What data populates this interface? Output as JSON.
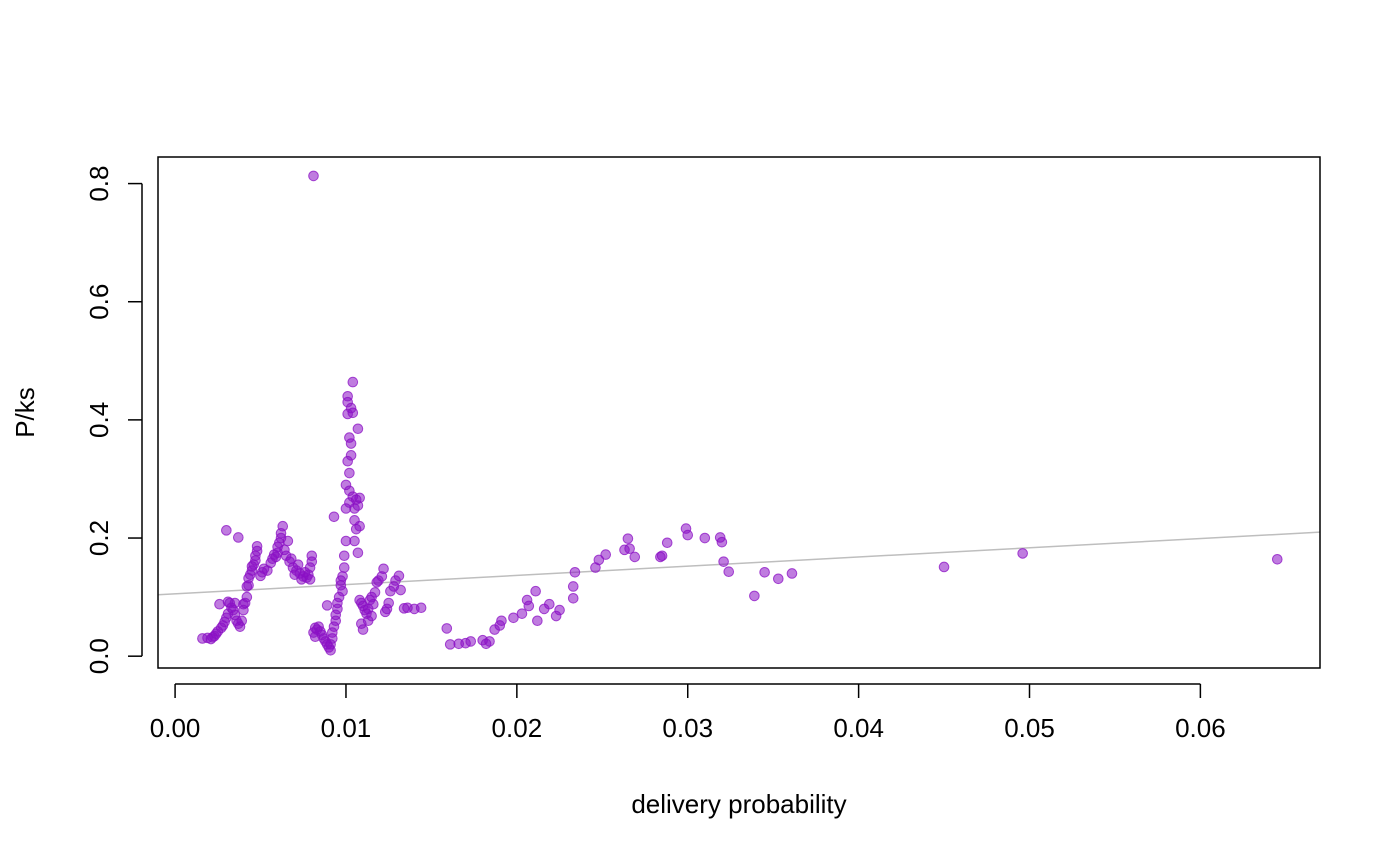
{
  "chart_data": {
    "type": "scatter",
    "title": "",
    "xlabel": "delivery probability",
    "ylabel": "P/ks",
    "xlim": [
      -0.001,
      0.067
    ],
    "ylim": [
      -0.02,
      0.845
    ],
    "x_ticks": [
      {
        "value": 0.0,
        "label": "0.00"
      },
      {
        "value": 0.01,
        "label": "0.01"
      },
      {
        "value": 0.02,
        "label": "0.02"
      },
      {
        "value": 0.03,
        "label": "0.03"
      },
      {
        "value": 0.04,
        "label": "0.04"
      },
      {
        "value": 0.05,
        "label": "0.05"
      },
      {
        "value": 0.06,
        "label": "0.06"
      }
    ],
    "y_ticks": [
      {
        "value": 0.0,
        "label": "0.0"
      },
      {
        "value": 0.2,
        "label": "0.2"
      },
      {
        "value": 0.4,
        "label": "0.4"
      },
      {
        "value": 0.6,
        "label": "0.6"
      },
      {
        "value": 0.8,
        "label": "0.8"
      }
    ],
    "grid": false,
    "legend": "none",
    "point_color": "#8B10C4",
    "trend_line": {
      "color": "#BEBEBE",
      "x": [
        -0.001,
        0.067
      ],
      "y": [
        0.104,
        0.21
      ]
    },
    "series": [
      {
        "points": [
          [
            0.0016,
            0.03
          ],
          [
            0.0019,
            0.031
          ],
          [
            0.0021,
            0.029
          ],
          [
            0.0022,
            0.032
          ],
          [
            0.0023,
            0.034
          ],
          [
            0.0024,
            0.038
          ],
          [
            0.0025,
            0.042
          ],
          [
            0.0026,
            0.088
          ],
          [
            0.0027,
            0.048
          ],
          [
            0.0028,
            0.052
          ],
          [
            0.0029,
            0.058
          ],
          [
            0.003,
            0.065
          ],
          [
            0.003,
            0.213
          ],
          [
            0.0031,
            0.072
          ],
          [
            0.0031,
            0.092
          ],
          [
            0.0032,
            0.09
          ],
          [
            0.0033,
            0.082
          ],
          [
            0.0034,
            0.078
          ],
          [
            0.0035,
            0.07
          ],
          [
            0.0035,
            0.09
          ],
          [
            0.0036,
            0.06
          ],
          [
            0.0037,
            0.055
          ],
          [
            0.0037,
            0.201
          ],
          [
            0.0038,
            0.05
          ],
          [
            0.0039,
            0.06
          ],
          [
            0.004,
            0.078
          ],
          [
            0.004,
            0.088
          ],
          [
            0.0041,
            0.09
          ],
          [
            0.0042,
            0.1
          ],
          [
            0.0042,
            0.118
          ],
          [
            0.0043,
            0.12
          ],
          [
            0.0043,
            0.132
          ],
          [
            0.0044,
            0.138
          ],
          [
            0.0045,
            0.145
          ],
          [
            0.0045,
            0.152
          ],
          [
            0.0046,
            0.155
          ],
          [
            0.0047,
            0.162
          ],
          [
            0.0047,
            0.17
          ],
          [
            0.0048,
            0.178
          ],
          [
            0.0048,
            0.186
          ],
          [
            0.005,
            0.136
          ],
          [
            0.0051,
            0.142
          ],
          [
            0.0052,
            0.148
          ],
          [
            0.0054,
            0.145
          ],
          [
            0.0056,
            0.158
          ],
          [
            0.0057,
            0.165
          ],
          [
            0.0058,
            0.172
          ],
          [
            0.0059,
            0.168
          ],
          [
            0.006,
            0.175
          ],
          [
            0.006,
            0.185
          ],
          [
            0.0061,
            0.192
          ],
          [
            0.0062,
            0.2
          ],
          [
            0.0062,
            0.208
          ],
          [
            0.0063,
            0.22
          ],
          [
            0.0064,
            0.18
          ],
          [
            0.0065,
            0.17
          ],
          [
            0.0066,
            0.195
          ],
          [
            0.0067,
            0.16
          ],
          [
            0.0068,
            0.165
          ],
          [
            0.0069,
            0.15
          ],
          [
            0.007,
            0.138
          ],
          [
            0.0071,
            0.145
          ],
          [
            0.0072,
            0.155
          ],
          [
            0.0073,
            0.14
          ],
          [
            0.0074,
            0.13
          ],
          [
            0.0075,
            0.135
          ],
          [
            0.0076,
            0.142
          ],
          [
            0.0077,
            0.133
          ],
          [
            0.0078,
            0.138
          ],
          [
            0.0079,
            0.13
          ],
          [
            0.0079,
            0.15
          ],
          [
            0.008,
            0.16
          ],
          [
            0.008,
            0.17
          ],
          [
            0.0081,
            0.813
          ],
          [
            0.0081,
            0.04
          ],
          [
            0.0082,
            0.033
          ],
          [
            0.0082,
            0.048
          ],
          [
            0.0083,
            0.045
          ],
          [
            0.0084,
            0.05
          ],
          [
            0.0085,
            0.042
          ],
          [
            0.0086,
            0.036
          ],
          [
            0.0087,
            0.03
          ],
          [
            0.0088,
            0.025
          ],
          [
            0.0089,
            0.02
          ],
          [
            0.0089,
            0.086
          ],
          [
            0.009,
            0.015
          ],
          [
            0.0091,
            0.01
          ],
          [
            0.0091,
            0.02
          ],
          [
            0.0092,
            0.03
          ],
          [
            0.0092,
            0.04
          ],
          [
            0.0093,
            0.05
          ],
          [
            0.0093,
            0.236
          ],
          [
            0.0094,
            0.06
          ],
          [
            0.0094,
            0.07
          ],
          [
            0.0095,
            0.08
          ],
          [
            0.0095,
            0.09
          ],
          [
            0.0096,
            0.1
          ],
          [
            0.0097,
            0.12
          ],
          [
            0.0097,
            0.128
          ],
          [
            0.0098,
            0.11
          ],
          [
            0.0098,
            0.135
          ],
          [
            0.0099,
            0.15
          ],
          [
            0.0099,
            0.17
          ],
          [
            0.01,
            0.195
          ],
          [
            0.01,
            0.29
          ],
          [
            0.01,
            0.25
          ],
          [
            0.0101,
            0.33
          ],
          [
            0.0101,
            0.41
          ],
          [
            0.0101,
            0.43
          ],
          [
            0.0101,
            0.44
          ],
          [
            0.0102,
            0.26
          ],
          [
            0.0102,
            0.28
          ],
          [
            0.0102,
            0.31
          ],
          [
            0.0102,
            0.37
          ],
          [
            0.0103,
            0.34
          ],
          [
            0.0103,
            0.36
          ],
          [
            0.0103,
            0.42
          ],
          [
            0.0104,
            0.27
          ],
          [
            0.0104,
            0.412
          ],
          [
            0.0104,
            0.464
          ],
          [
            0.0105,
            0.25
          ],
          [
            0.0105,
            0.23
          ],
          [
            0.0105,
            0.195
          ],
          [
            0.0106,
            0.265
          ],
          [
            0.0106,
            0.215
          ],
          [
            0.0107,
            0.385
          ],
          [
            0.0107,
            0.255
          ],
          [
            0.0107,
            0.175
          ],
          [
            0.0108,
            0.22
          ],
          [
            0.0108,
            0.268
          ],
          [
            0.0108,
            0.095
          ],
          [
            0.0109,
            0.09
          ],
          [
            0.0109,
            0.055
          ],
          [
            0.011,
            0.045
          ],
          [
            0.011,
            0.085
          ],
          [
            0.0111,
            0.078
          ],
          [
            0.0112,
            0.072
          ],
          [
            0.0113,
            0.06
          ],
          [
            0.0113,
            0.08
          ],
          [
            0.0114,
            0.095
          ],
          [
            0.0115,
            0.068
          ],
          [
            0.0115,
            0.1
          ],
          [
            0.0116,
            0.088
          ],
          [
            0.0117,
            0.108
          ],
          [
            0.0118,
            0.125
          ],
          [
            0.0119,
            0.128
          ],
          [
            0.0121,
            0.135
          ],
          [
            0.0122,
            0.148
          ],
          [
            0.0123,
            0.075
          ],
          [
            0.0124,
            0.08
          ],
          [
            0.0125,
            0.09
          ],
          [
            0.0126,
            0.11
          ],
          [
            0.0128,
            0.118
          ],
          [
            0.0129,
            0.128
          ],
          [
            0.0131,
            0.136
          ],
          [
            0.0132,
            0.112
          ],
          [
            0.0134,
            0.081
          ],
          [
            0.0136,
            0.082
          ],
          [
            0.014,
            0.08
          ],
          [
            0.0144,
            0.082
          ],
          [
            0.0159,
            0.047
          ],
          [
            0.0161,
            0.02
          ],
          [
            0.0166,
            0.021
          ],
          [
            0.017,
            0.022
          ],
          [
            0.0173,
            0.025
          ],
          [
            0.018,
            0.027
          ],
          [
            0.0182,
            0.021
          ],
          [
            0.0184,
            0.025
          ],
          [
            0.0187,
            0.045
          ],
          [
            0.019,
            0.052
          ],
          [
            0.0191,
            0.06
          ],
          [
            0.0198,
            0.065
          ],
          [
            0.0203,
            0.072
          ],
          [
            0.0206,
            0.095
          ],
          [
            0.0207,
            0.085
          ],
          [
            0.0211,
            0.11
          ],
          [
            0.0212,
            0.06
          ],
          [
            0.0216,
            0.08
          ],
          [
            0.0219,
            0.088
          ],
          [
            0.0223,
            0.068
          ],
          [
            0.0225,
            0.078
          ],
          [
            0.0233,
            0.098
          ],
          [
            0.0233,
            0.118
          ],
          [
            0.0234,
            0.142
          ],
          [
            0.0246,
            0.15
          ],
          [
            0.0248,
            0.163
          ],
          [
            0.0252,
            0.172
          ],
          [
            0.0263,
            0.18
          ],
          [
            0.0265,
            0.199
          ],
          [
            0.0266,
            0.182
          ],
          [
            0.0269,
            0.168
          ],
          [
            0.0284,
            0.168
          ],
          [
            0.0285,
            0.17
          ],
          [
            0.0288,
            0.192
          ],
          [
            0.0299,
            0.216
          ],
          [
            0.03,
            0.205
          ],
          [
            0.031,
            0.2
          ],
          [
            0.0319,
            0.201
          ],
          [
            0.032,
            0.193
          ],
          [
            0.0321,
            0.16
          ],
          [
            0.0324,
            0.143
          ],
          [
            0.0339,
            0.102
          ],
          [
            0.0345,
            0.142
          ],
          [
            0.0353,
            0.131
          ],
          [
            0.0361,
            0.14
          ],
          [
            0.045,
            0.151
          ],
          [
            0.0496,
            0.174
          ],
          [
            0.0645,
            0.164
          ]
        ]
      }
    ]
  }
}
